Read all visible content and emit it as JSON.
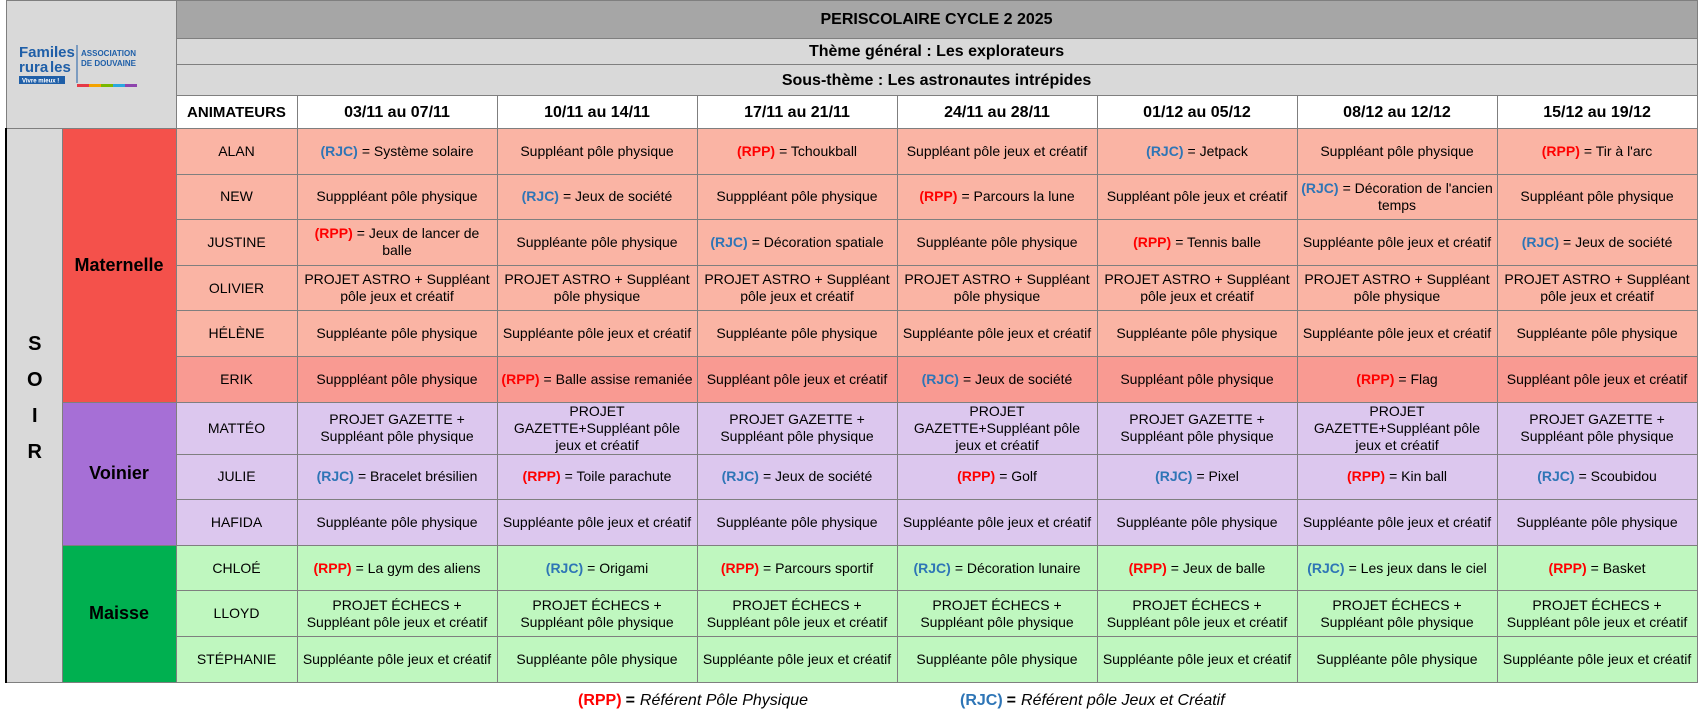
{
  "logo": {
    "brand": [
      "Famil",
      "les",
      "rura",
      "les"
    ],
    "org": [
      "ASSOCIATION",
      "DE DOUVAINE"
    ],
    "slogan": "Vivre mieux !"
  },
  "header": {
    "title": "PERISCOLAIRE CYCLE 2 2025",
    "theme": "Thème général : Les explorateurs",
    "subtheme": "Sous-thème : Les astronautes intrépides"
  },
  "codes": {
    "(RPP)": "#ff0000",
    "(RJC)": "#2e75b6"
  },
  "table": {
    "corner": "ANIMATEURS",
    "period": "SOIR",
    "periods": [
      "03/11 au 07/11",
      "10/11 au 14/11",
      "17/11 au 21/11",
      "24/11 au 28/11",
      "01/12 au 05/12",
      "08/12 au 12/12",
      "15/12 au 19/12"
    ],
    "groups": [
      {
        "name": "Maternelle",
        "color": "#f4514b",
        "row_color": "#fab4a4",
        "rows": [
          {
            "name": "ALAN",
            "cells": [
              {
                "code": "(RJC)",
                "text": "= Système solaire"
              },
              "Suppléant pôle physique",
              {
                "code": "(RPP)",
                "text": "= Tchoukball"
              },
              "Suppléant pôle jeux et créatif",
              {
                "code": "(RJC)",
                "text": "= Jetpack"
              },
              "Suppléant pôle physique",
              {
                "code": "(RPP)",
                "text": "= Tir à l'arc"
              }
            ]
          },
          {
            "name": "NEW",
            "cells": [
              "Supppléant pôle physique",
              {
                "code": "(RJC)",
                "text": "= Jeux de société"
              },
              "Supppléant pôle physique",
              {
                "code": "(RPP)",
                "text": "= Parcours la lune"
              },
              "Suppléant pôle jeux et créatif",
              {
                "code": "(RJC)",
                "text": "= Décoration de l'ancien temps"
              },
              "Suppléant pôle physique"
            ]
          },
          {
            "name": "JUSTINE",
            "cells": [
              {
                "code": "(RPP)",
                "text": "= Jeux de lancer de balle"
              },
              "Suppléante pôle physique",
              {
                "code": "(RJC)",
                "text": "= Décoration spatiale"
              },
              "Suppléante pôle physique",
              {
                "code": "(RPP)",
                "text": "= Tennis balle"
              },
              "Suppléante pôle jeux et créatif",
              {
                "code": "(RJC)",
                "text": "= Jeux de société"
              }
            ]
          },
          {
            "name": "OLIVIER",
            "cells": [
              "PROJET ASTRO + Suppléant pôle jeux et créatif",
              "PROJET ASTRO + Suppléant pôle physique",
              "PROJET ASTRO + Suppléant pôle jeux et créatif",
              "PROJET ASTRO + Suppléant pôle physique",
              "PROJET ASTRO + Suppléant pôle jeux et créatif",
              "PROJET ASTRO + Suppléant pôle physique",
              "PROJET ASTRO + Suppléant pôle jeux et créatif"
            ]
          },
          {
            "name": "HÉLÈNE",
            "cells": [
              "Suppléante pôle physique",
              "Suppléante pôle jeux et créatif",
              "Suppléante pôle physique",
              "Suppléante pôle jeux et créatif",
              "Suppléante pôle physique",
              "Suppléante pôle jeux et créatif",
              "Suppléante pôle physique"
            ]
          },
          {
            "name": "ERIK",
            "color": "#f99a92",
            "cells": [
              "Supppléant pôle physique",
              {
                "code": "(RPP)",
                "text": "= Balle assise remaniée"
              },
              "Suppléant pôle jeux et créatif",
              {
                "code": "(RJC)",
                "text": "= Jeux de société"
              },
              "Suppléant pôle physique",
              {
                "code": "(RPP)",
                "text": "= Flag"
              },
              "Suppléant pôle jeux et créatif"
            ]
          }
        ]
      },
      {
        "name": "Voinier",
        "color": "#a66fd6",
        "row_color": "#dcc7ee",
        "rows": [
          {
            "name": "MATTÉO",
            "cells": [
              "PROJET GAZETTE + Suppléant pôle physique",
              "PROJET GAZETTE+Suppléant pôle jeux et créatif",
              "PROJET GAZETTE + Suppléant pôle physique",
              "PROJET GAZETTE+Suppléant pôle jeux et créatif",
              "PROJET GAZETTE + Suppléant pôle physique",
              "PROJET GAZETTE+Suppléant pôle jeux et créatif",
              "PROJET GAZETTE + Suppléant pôle physique"
            ]
          },
          {
            "name": "JULIE",
            "cells": [
              {
                "code": "(RJC)",
                "text": "= Bracelet brésilien"
              },
              {
                "code": "(RPP)",
                "text": "= Toile parachute"
              },
              {
                "code": "(RJC)",
                "text": "= Jeux de société"
              },
              {
                "code": "(RPP)",
                "text": "= Golf"
              },
              {
                "code": "(RJC)",
                "text": "= Pixel"
              },
              {
                "code": "(RPP)",
                "text": "= Kin ball"
              },
              {
                "code": "(RJC)",
                "text": "= Scoubidou"
              }
            ]
          },
          {
            "name": "HAFIDA",
            "cells": [
              "Suppléante pôle physique",
              "Suppléante pôle jeux et créatif",
              "Suppléante pôle physique",
              "Suppléante pôle jeux et créatif",
              "Suppléante pôle physique",
              "Suppléante pôle jeux et créatif",
              "Suppléante pôle physique"
            ]
          }
        ]
      },
      {
        "name": "Maisse",
        "color": "#00b050",
        "row_color": "#bff7bf",
        "rows": [
          {
            "name": "CHLOÉ",
            "cells": [
              {
                "code": "(RPP)",
                "text": "= La gym des aliens"
              },
              {
                "code": "(RJC)",
                "text": "= Origami"
              },
              {
                "code": "(RPP)",
                "text": "= Parcours sportif"
              },
              {
                "code": "(RJC)",
                "text": "= Décoration lunaire"
              },
              {
                "code": "(RPP)",
                "text": "= Jeux de balle"
              },
              {
                "code": "(RJC)",
                "text": "= Les jeux dans le ciel"
              },
              {
                "code": "(RPP)",
                "text": "= Basket"
              }
            ]
          },
          {
            "name": "LLOYD",
            "cells": [
              "PROJET ÉCHECS + Suppléant pôle jeux et créatif",
              "PROJET ÉCHECS + Suppléant pôle physique",
              "PROJET ÉCHECS + Suppléant pôle jeux et créatif",
              "PROJET ÉCHECS + Suppléant pôle physique",
              "PROJET ÉCHECS + Suppléant pôle jeux et créatif",
              "PROJET ÉCHECS + Suppléant pôle physique",
              "PROJET ÉCHECS + Suppléant pôle jeux et créatif"
            ]
          },
          {
            "name": "STÉPHANIE",
            "cells": [
              "Suppléante pôle jeux et créatif",
              "Suppléante pôle physique",
              "Suppléante pôle jeux et créatif",
              "Suppléante pôle physique",
              "Suppléante pôle jeux et créatif",
              "Suppléante pôle physique",
              "Suppléante pôle jeux et créatif"
            ]
          }
        ]
      }
    ]
  },
  "legend": [
    {
      "code": "(RPP)",
      "eq": "=",
      "text": "Référent Pôle Physique"
    },
    {
      "code": "(RJC)",
      "eq": "=",
      "text": "Référent pôle Jeux et Créatif"
    }
  ]
}
